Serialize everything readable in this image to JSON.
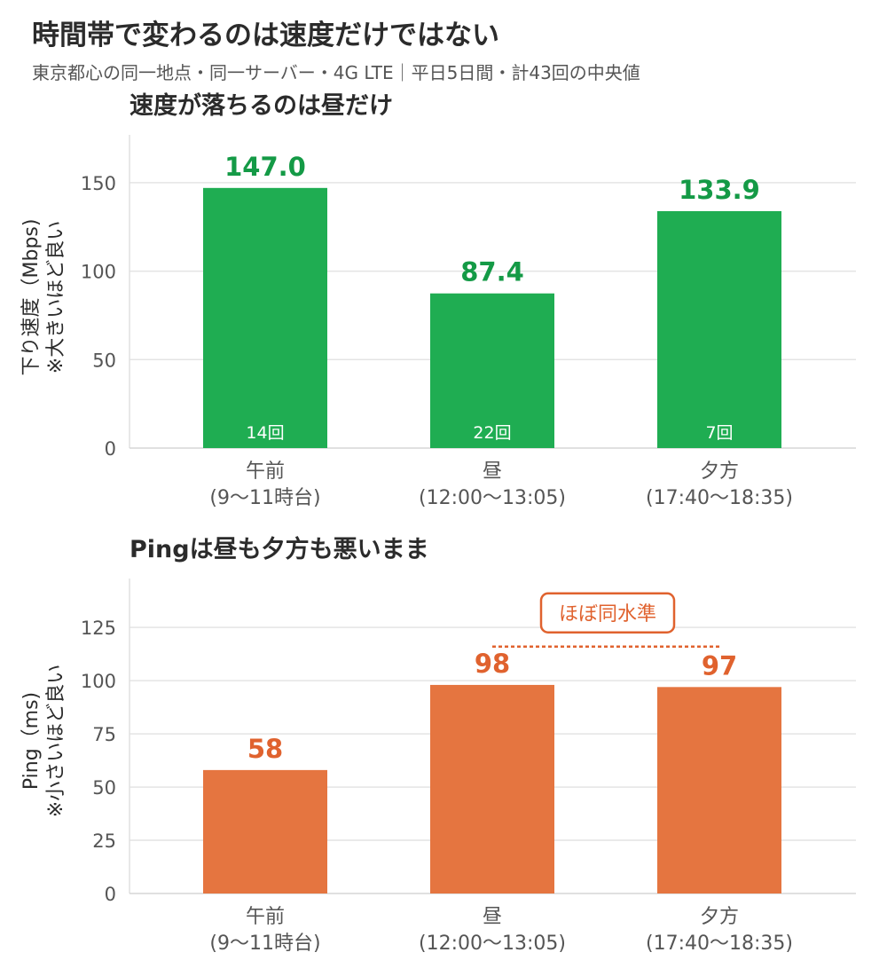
{
  "header": {
    "title": "時間帯で変わるのは速度だけではない",
    "subtitle": "東京都心の同一地点・同一サーバー・4G LTE｜平日5日間・計43回の中央値"
  },
  "chart_data": [
    {
      "type": "bar",
      "title": "速度が落ちるのは昼だけ",
      "categories": [
        {
          "line1": "午前",
          "line2": "(9〜11時台)"
        },
        {
          "line1": "昼",
          "line2": "(12:00〜13:05)"
        },
        {
          "line1": "夕方",
          "line2": "(17:40〜18:35)"
        }
      ],
      "values": [
        147.0,
        87.4,
        133.9
      ],
      "value_labels": [
        "147.0",
        "87.4",
        "133.9"
      ],
      "counts": [
        "14回",
        "22回",
        "7回"
      ],
      "ylabel_line1": "下り速度（Mbps)",
      "ylabel_line2": "※大きいほど良い",
      "ylim": [
        0,
        177
      ],
      "yticks": [
        0,
        50,
        100,
        150
      ],
      "grid": true,
      "color": "#1fad52",
      "label_color": "#149a46"
    },
    {
      "type": "bar",
      "title": "Pingは昼も夕方も悪いまま",
      "categories": [
        {
          "line1": "午前",
          "line2": "(9〜11時台)"
        },
        {
          "line1": "昼",
          "line2": "(12:00〜13:05)"
        },
        {
          "line1": "夕方",
          "line2": "(17:40〜18:35)"
        }
      ],
      "values": [
        58,
        98,
        97
      ],
      "value_labels": [
        "58",
        "98",
        "97"
      ],
      "ylabel_line1": "Ping（ms)",
      "ylabel_line2": "※小さいほど良い",
      "ylim": [
        0,
        148
      ],
      "yticks": [
        0,
        25,
        50,
        75,
        100,
        125
      ],
      "grid": true,
      "color": "#e57540",
      "label_color": "#e0622e",
      "annotation": {
        "text": "ほぼ同水準",
        "from_category": 1,
        "to_category": 2,
        "level": 116
      }
    }
  ]
}
